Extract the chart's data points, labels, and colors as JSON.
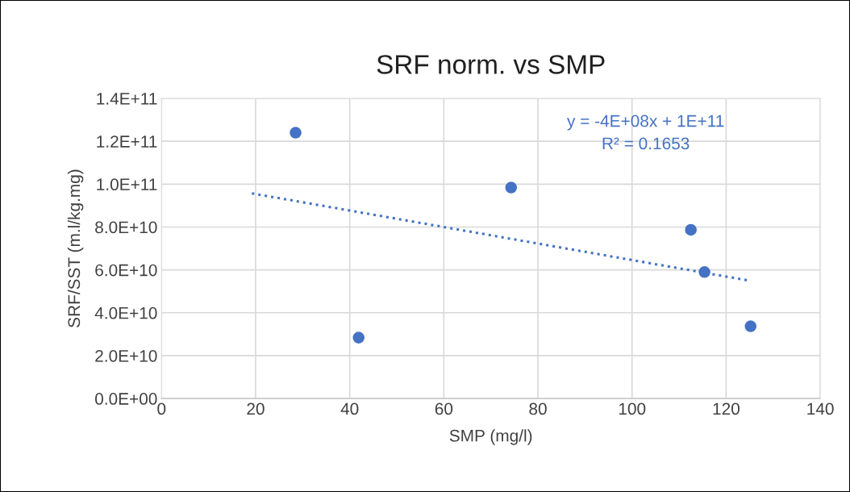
{
  "chart_data": {
    "type": "scatter",
    "title": "SRF norm. vs SMP",
    "xlabel": "SMP (mg/l)",
    "ylabel": "SRF/SST (m.l/kg.mg)",
    "annotations": [
      "y = -4E+08x + 1E+11",
      "R² = 0.1653"
    ],
    "series": [
      {
        "color": "#4472c4",
        "marker": "circle",
        "x": [
          28.5,
          41.9,
          74.3,
          112.5,
          115.4,
          125.2
        ],
        "values": [
          124000000000,
          28400000000,
          98400000000,
          78700000000,
          59000000000,
          33700000000
        ]
      },
      {
        "type": "line",
        "color": "#4472c4",
        "line_style": "dotted",
        "marker": "none",
        "x": [
          19.2,
          124.4
        ],
        "values": [
          95700000000,
          55200000000
        ]
      }
    ],
    "xlim": [
      0,
      140
    ],
    "xticks": [
      0,
      20,
      40,
      60,
      80,
      100,
      120,
      140
    ],
    "ylim": [
      0,
      140000000000
    ],
    "yticks": [
      {
        "value": 0,
        "label": "0.0E+00"
      },
      {
        "value": 20000000000,
        "label": "2.0E+10"
      },
      {
        "value": 40000000000,
        "label": "4.0E+10"
      },
      {
        "value": 60000000000,
        "label": "6.0E+10"
      },
      {
        "value": 80000000000,
        "label": "8.0E+10"
      },
      {
        "value": 100000000000,
        "label": "1.0E+11"
      },
      {
        "value": 120000000000,
        "label": "1.2E+11"
      },
      {
        "value": 140000000000,
        "label": "1.4E+11"
      }
    ],
    "grid": true,
    "legend": false
  }
}
